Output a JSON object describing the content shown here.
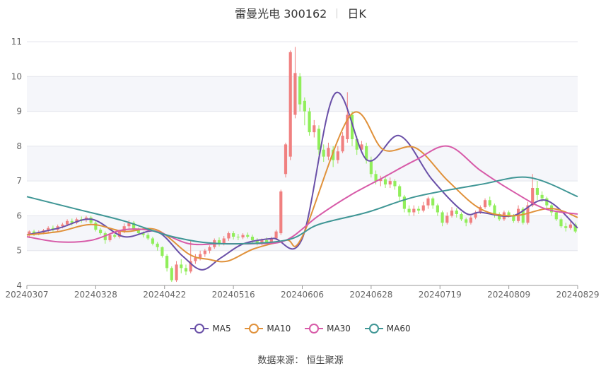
{
  "header": {
    "name": "雷曼光电 300162",
    "period": "日K"
  },
  "source": {
    "label": "数据来源：",
    "value": "恒生聚源"
  },
  "chart_data": {
    "type": "candlestick",
    "ylim": [
      4,
      11
    ],
    "yticks": [
      4,
      5,
      6,
      7,
      8,
      9,
      10,
      11
    ],
    "xticks": [
      "20240307",
      "20240328",
      "20240422",
      "20240516",
      "20240606",
      "20240628",
      "20240719",
      "20240809",
      "20240829"
    ],
    "grid": true,
    "colors": {
      "up": "#f08080",
      "down": "#90ee5a",
      "band": "#f5f6fa",
      "grid": "#e4e6ed",
      "axis": "#666666"
    },
    "series": [
      {
        "name": "MA5",
        "color": "#6a50a8",
        "x": [
          0,
          10,
          20,
          30,
          40,
          48,
          54,
          60,
          67,
          76,
          85,
          95,
          105,
          115,
          125,
          135,
          140,
          150,
          160,
          170
        ],
        "y": [
          5.45,
          5.65,
          5.9,
          5.4,
          5.55,
          4.85,
          4.45,
          4.8,
          5.2,
          5.35,
          5.35,
          9.5,
          7.6,
          8.3,
          7.05,
          6.1,
          6.1,
          6.0,
          6.45,
          5.65
        ]
      },
      {
        "name": "MA10",
        "color": "#e0913a",
        "x": [
          0,
          10,
          20,
          30,
          40,
          50,
          56,
          62,
          70,
          80,
          85,
          100,
          110,
          120,
          130,
          140,
          150,
          160,
          165,
          170
        ],
        "y": [
          5.45,
          5.55,
          5.75,
          5.55,
          5.6,
          4.9,
          4.75,
          4.7,
          5.05,
          5.3,
          5.4,
          8.9,
          7.9,
          7.95,
          7.0,
          6.2,
          6.0,
          6.2,
          6.15,
          5.95
        ]
      },
      {
        "name": "MA30",
        "color": "#d75aa8",
        "x": [
          0,
          10,
          20,
          30,
          40,
          50,
          60,
          70,
          80,
          90,
          100,
          110,
          120,
          130,
          140,
          150,
          160,
          170
        ],
        "y": [
          5.4,
          5.25,
          5.3,
          5.6,
          5.55,
          5.2,
          5.2,
          5.2,
          5.3,
          6.0,
          6.6,
          7.1,
          7.6,
          8.0,
          7.3,
          6.7,
          6.2,
          6.05
        ]
      },
      {
        "name": "MA60",
        "color": "#3f9695",
        "x": [
          0,
          15,
          30,
          45,
          60,
          80,
          90,
          105,
          120,
          140,
          155,
          170
        ],
        "y": [
          6.55,
          6.2,
          5.85,
          5.4,
          5.2,
          5.3,
          5.75,
          6.1,
          6.55,
          6.9,
          7.1,
          6.55
        ]
      }
    ],
    "candles": [
      [
        5.45,
        5.55,
        5.58,
        5.36
      ],
      [
        5.55,
        5.5,
        5.6,
        5.42
      ],
      [
        5.5,
        5.52,
        5.58,
        5.44
      ],
      [
        5.52,
        5.58,
        5.62,
        5.47
      ],
      [
        5.58,
        5.65,
        5.7,
        5.52
      ],
      [
        5.65,
        5.6,
        5.72,
        5.55
      ],
      [
        5.6,
        5.7,
        5.75,
        5.56
      ],
      [
        5.7,
        5.75,
        5.8,
        5.64
      ],
      [
        5.75,
        5.85,
        5.9,
        5.7
      ],
      [
        5.85,
        5.8,
        5.92,
        5.72
      ],
      [
        5.8,
        5.9,
        5.95,
        5.76
      ],
      [
        5.9,
        5.88,
        5.98,
        5.8
      ],
      [
        5.88,
        5.95,
        6.0,
        5.82
      ],
      [
        5.95,
        5.8,
        6.0,
        5.74
      ],
      [
        5.8,
        5.6,
        5.85,
        5.55
      ],
      [
        5.6,
        5.5,
        5.65,
        5.45
      ],
      [
        5.5,
        5.3,
        5.55,
        5.2
      ],
      [
        5.3,
        5.45,
        5.5,
        5.25
      ],
      [
        5.45,
        5.4,
        5.52,
        5.35
      ],
      [
        5.4,
        5.55,
        5.6,
        5.35
      ],
      [
        5.55,
        5.7,
        5.78,
        5.5
      ],
      [
        5.7,
        5.8,
        5.88,
        5.62
      ],
      [
        5.8,
        5.6,
        5.85,
        5.55
      ],
      [
        5.6,
        5.5,
        5.66,
        5.45
      ],
      [
        5.5,
        5.45,
        5.55,
        5.38
      ],
      [
        5.45,
        5.35,
        5.5,
        5.3
      ],
      [
        5.35,
        5.2,
        5.4,
        5.15
      ],
      [
        5.2,
        5.1,
        5.25,
        5.0
      ],
      [
        5.1,
        4.85,
        5.12,
        4.8
      ],
      [
        4.85,
        4.5,
        4.9,
        4.4
      ],
      [
        4.5,
        4.15,
        4.55,
        4.1
      ],
      [
        4.15,
        4.6,
        4.7,
        4.1
      ],
      [
        4.6,
        4.5,
        4.75,
        4.35
      ],
      [
        4.5,
        4.4,
        4.6,
        4.3
      ],
      [
        4.4,
        4.7,
        5.3,
        4.35
      ],
      [
        4.7,
        4.8,
        4.9,
        4.62
      ],
      [
        4.8,
        4.9,
        5.0,
        4.72
      ],
      [
        4.9,
        5.0,
        5.05,
        4.82
      ],
      [
        5.0,
        5.1,
        5.15,
        4.92
      ],
      [
        5.1,
        5.3,
        5.35,
        5.05
      ],
      [
        5.3,
        5.2,
        5.38,
        5.12
      ],
      [
        5.2,
        5.35,
        5.42,
        5.15
      ],
      [
        5.35,
        5.5,
        5.55,
        5.28
      ],
      [
        5.5,
        5.4,
        5.56,
        5.32
      ],
      [
        5.4,
        5.38,
        5.48,
        5.3
      ],
      [
        5.38,
        5.45,
        5.5,
        5.33
      ],
      [
        5.45,
        5.4,
        5.52,
        5.35
      ],
      [
        5.4,
        5.3,
        5.46,
        5.22
      ],
      [
        5.3,
        5.2,
        5.36,
        5.15
      ],
      [
        5.2,
        5.3,
        5.35,
        5.15
      ],
      [
        5.3,
        5.25,
        5.38,
        5.2
      ],
      [
        5.25,
        5.35,
        5.4,
        5.2
      ],
      [
        5.35,
        5.55,
        5.6,
        5.3
      ],
      [
        5.5,
        6.7,
        6.75,
        5.45
      ],
      [
        7.2,
        8.05,
        8.1,
        7.1
      ],
      [
        7.7,
        10.7,
        10.75,
        7.6
      ],
      [
        8.9,
        10.1,
        10.85,
        8.8
      ],
      [
        10.0,
        9.2,
        10.1,
        9.0
      ],
      [
        9.3,
        9.0,
        9.4,
        8.6
      ],
      [
        9.0,
        8.4,
        9.1,
        8.3
      ],
      [
        8.4,
        8.6,
        8.75,
        8.25
      ],
      [
        8.5,
        7.9,
        8.6,
        7.75
      ],
      [
        7.9,
        7.7,
        8.05,
        7.55
      ],
      [
        7.7,
        7.95,
        8.1,
        7.6
      ],
      [
        7.9,
        7.6,
        8.0,
        7.4
      ],
      [
        7.6,
        7.85,
        8.0,
        7.5
      ],
      [
        7.85,
        8.3,
        8.4,
        7.8
      ],
      [
        8.2,
        8.9,
        9.55,
        8.1
      ],
      [
        8.9,
        8.2,
        9.0,
        8.0
      ],
      [
        8.2,
        7.9,
        8.3,
        7.75
      ],
      [
        7.9,
        8.05,
        8.15,
        7.8
      ],
      [
        8.0,
        7.6,
        8.1,
        7.5
      ],
      [
        7.6,
        7.2,
        7.7,
        7.1
      ],
      [
        7.2,
        7.0,
        7.3,
        6.9
      ],
      [
        7.0,
        7.05,
        7.15,
        6.85
      ],
      [
        7.05,
        6.9,
        7.15,
        6.8
      ],
      [
        6.9,
        7.0,
        7.1,
        6.8
      ],
      [
        7.0,
        6.85,
        7.05,
        6.75
      ],
      [
        6.85,
        6.55,
        6.9,
        6.4
      ],
      [
        6.55,
        6.2,
        6.6,
        6.1
      ],
      [
        6.2,
        6.1,
        6.3,
        6.0
      ],
      [
        6.1,
        6.2,
        6.3,
        6.0
      ],
      [
        6.2,
        6.15,
        6.28,
        6.05
      ],
      [
        6.15,
        6.3,
        6.4,
        6.1
      ],
      [
        6.3,
        6.5,
        6.55,
        6.2
      ],
      [
        6.5,
        6.3,
        6.55,
        6.2
      ],
      [
        6.3,
        6.1,
        6.35,
        6.0
      ],
      [
        6.1,
        5.8,
        6.15,
        5.7
      ],
      [
        5.8,
        6.0,
        6.1,
        5.75
      ],
      [
        6.0,
        6.15,
        6.25,
        5.95
      ],
      [
        6.15,
        6.05,
        6.22,
        5.95
      ],
      [
        6.05,
        5.9,
        6.1,
        5.85
      ],
      [
        5.9,
        5.8,
        5.95,
        5.7
      ],
      [
        5.8,
        5.95,
        6.0,
        5.75
      ],
      [
        5.95,
        6.1,
        6.15,
        5.9
      ],
      [
        6.1,
        6.25,
        6.3,
        6.05
      ],
      [
        6.25,
        6.45,
        6.5,
        6.2
      ],
      [
        6.45,
        6.3,
        6.55,
        6.25
      ],
      [
        6.3,
        6.05,
        6.35,
        5.95
      ],
      [
        6.05,
        5.9,
        6.1,
        5.85
      ],
      [
        5.9,
        6.1,
        6.15,
        5.85
      ],
      [
        6.1,
        6.0,
        6.15,
        5.95
      ],
      [
        6.0,
        5.85,
        6.05,
        5.8
      ],
      [
        5.85,
        6.2,
        6.3,
        5.8
      ],
      [
        6.2,
        5.8,
        6.25,
        5.75
      ],
      [
        5.8,
        6.3,
        6.4,
        5.75
      ],
      [
        6.3,
        6.8,
        7.2,
        6.25
      ],
      [
        6.8,
        6.6,
        7.0,
        6.45
      ],
      [
        6.6,
        6.5,
        6.7,
        6.4
      ],
      [
        6.5,
        6.3,
        6.55,
        6.2
      ],
      [
        6.3,
        6.1,
        6.35,
        6.0
      ],
      [
        6.1,
        5.9,
        6.15,
        5.85
      ],
      [
        5.9,
        5.7,
        5.95,
        5.65
      ],
      [
        5.7,
        5.65,
        5.8,
        5.55
      ],
      [
        5.65,
        5.75,
        5.85,
        5.6
      ],
      [
        5.75,
        5.55,
        5.8,
        5.5
      ]
    ]
  }
}
